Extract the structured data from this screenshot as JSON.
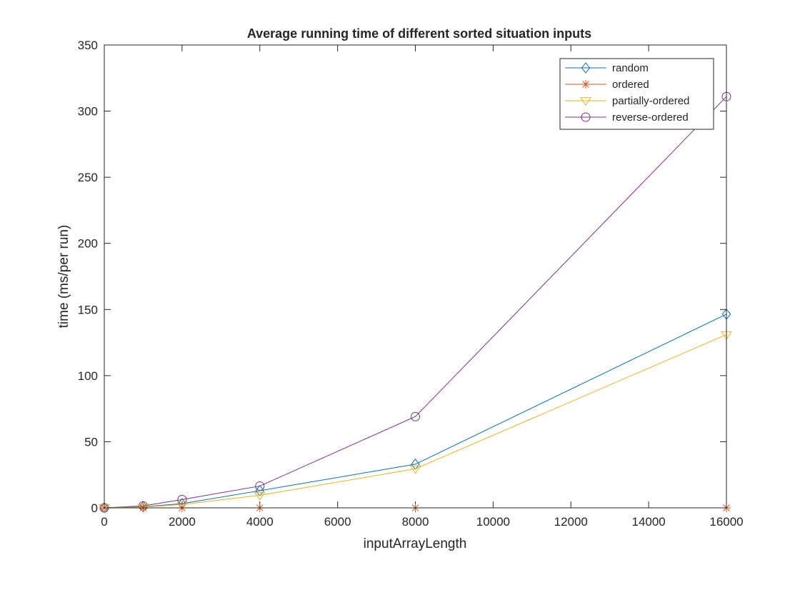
{
  "chart_data": {
    "type": "line",
    "title": "Average running time of different sorted situation inputs",
    "xlabel": "inputArrayLength",
    "ylabel": "time (ms/per run)",
    "xlim": [
      0,
      16000
    ],
    "ylim": [
      0,
      350
    ],
    "xticks": [
      0,
      2000,
      4000,
      6000,
      8000,
      10000,
      12000,
      14000,
      16000
    ],
    "yticks": [
      0,
      50,
      100,
      150,
      200,
      250,
      300,
      350
    ],
    "x": [
      0,
      1000,
      2000,
      4000,
      8000,
      16000
    ],
    "grid": false,
    "legend_location": "top-right",
    "series": [
      {
        "name": "random",
        "marker": "diamond",
        "color": "#0072BD",
        "values": [
          0,
          0.8,
          3.2,
          13,
          33,
          146.5
        ]
      },
      {
        "name": "ordered",
        "marker": "asterisk",
        "color": "#D95319",
        "values": [
          0,
          0,
          0,
          0,
          0,
          0
        ]
      },
      {
        "name": "partially-ordered",
        "marker": "triangle-down",
        "color": "#EDB120",
        "values": [
          0,
          0.6,
          2.5,
          9.5,
          29.5,
          131
        ]
      },
      {
        "name": "reverse-ordered",
        "marker": "circle",
        "color": "#7E2F8E",
        "values": [
          0,
          1.5,
          6.3,
          16.5,
          69,
          311
        ]
      }
    ]
  }
}
